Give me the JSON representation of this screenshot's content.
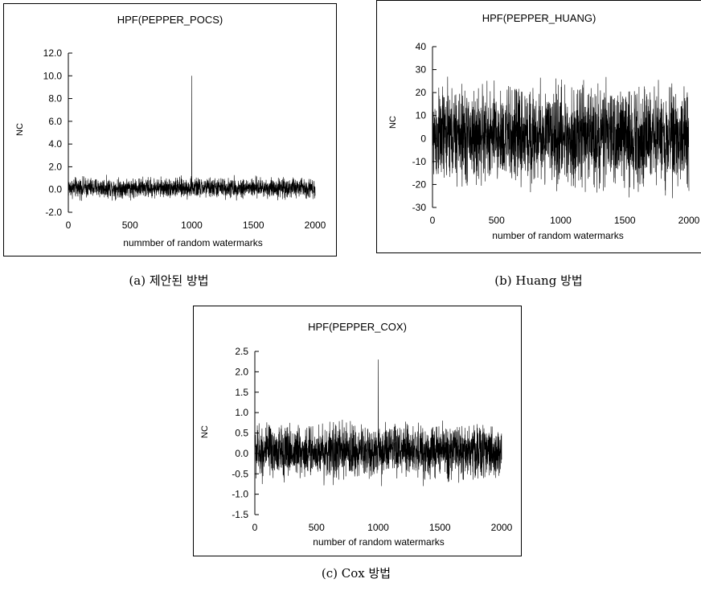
{
  "chart_data": [
    {
      "type": "line",
      "title": "HPF(PEPPER_POCS)",
      "xlabel": "nummber of random watermarks",
      "ylabel": "NC",
      "xlim": [
        0,
        2000
      ],
      "ylim": [
        -2.0,
        12.0
      ],
      "xticks": [
        "0",
        "500",
        "1000",
        "1500",
        "2000"
      ],
      "yticks": [
        "12.0",
        "10.0",
        "8.0",
        "6.0",
        "4.0",
        "2.0",
        "0.0",
        "-2.0"
      ],
      "series": [
        {
          "noise_range": [
            -1.0,
            1.3
          ],
          "peak_x": 1000,
          "peak_y": 10.0,
          "n_points": 2000
        }
      ],
      "caption": "(a) 제안된 방법"
    },
    {
      "type": "line",
      "title": "HPF(PEPPER_HUANG)",
      "xlabel": "number of random watermarks",
      "ylabel": "NC",
      "xlim": [
        0,
        2000
      ],
      "ylim": [
        -30,
        40
      ],
      "xticks": [
        "0",
        "500",
        "1000",
        "1500",
        "2000"
      ],
      "yticks": [
        "40",
        "30",
        "20",
        "10",
        "0",
        "-10",
        "-20",
        "-30"
      ],
      "series": [
        {
          "noise_range": [
            -26,
            28
          ],
          "n_points": 2000
        }
      ],
      "caption": "(b) Huang 방법"
    },
    {
      "type": "line",
      "title": "HPF(PEPPER_COX)",
      "xlabel": "number of random watermarks",
      "ylabel": "NC",
      "xlim": [
        0,
        2000
      ],
      "ylim": [
        -1.5,
        2.5
      ],
      "xticks": [
        "0",
        "500",
        "1000",
        "1500",
        "2000"
      ],
      "yticks": [
        "2.5",
        "2.0",
        "1.5",
        "1.0",
        "0.5",
        "0.0",
        "-0.5",
        "-1.0",
        "-1.5"
      ],
      "series": [
        {
          "noise_range": [
            -0.8,
            0.9
          ],
          "peak_x": 1000,
          "peak_y": 2.3,
          "n_points": 2000
        }
      ],
      "caption": "(c) Cox 방법"
    }
  ]
}
